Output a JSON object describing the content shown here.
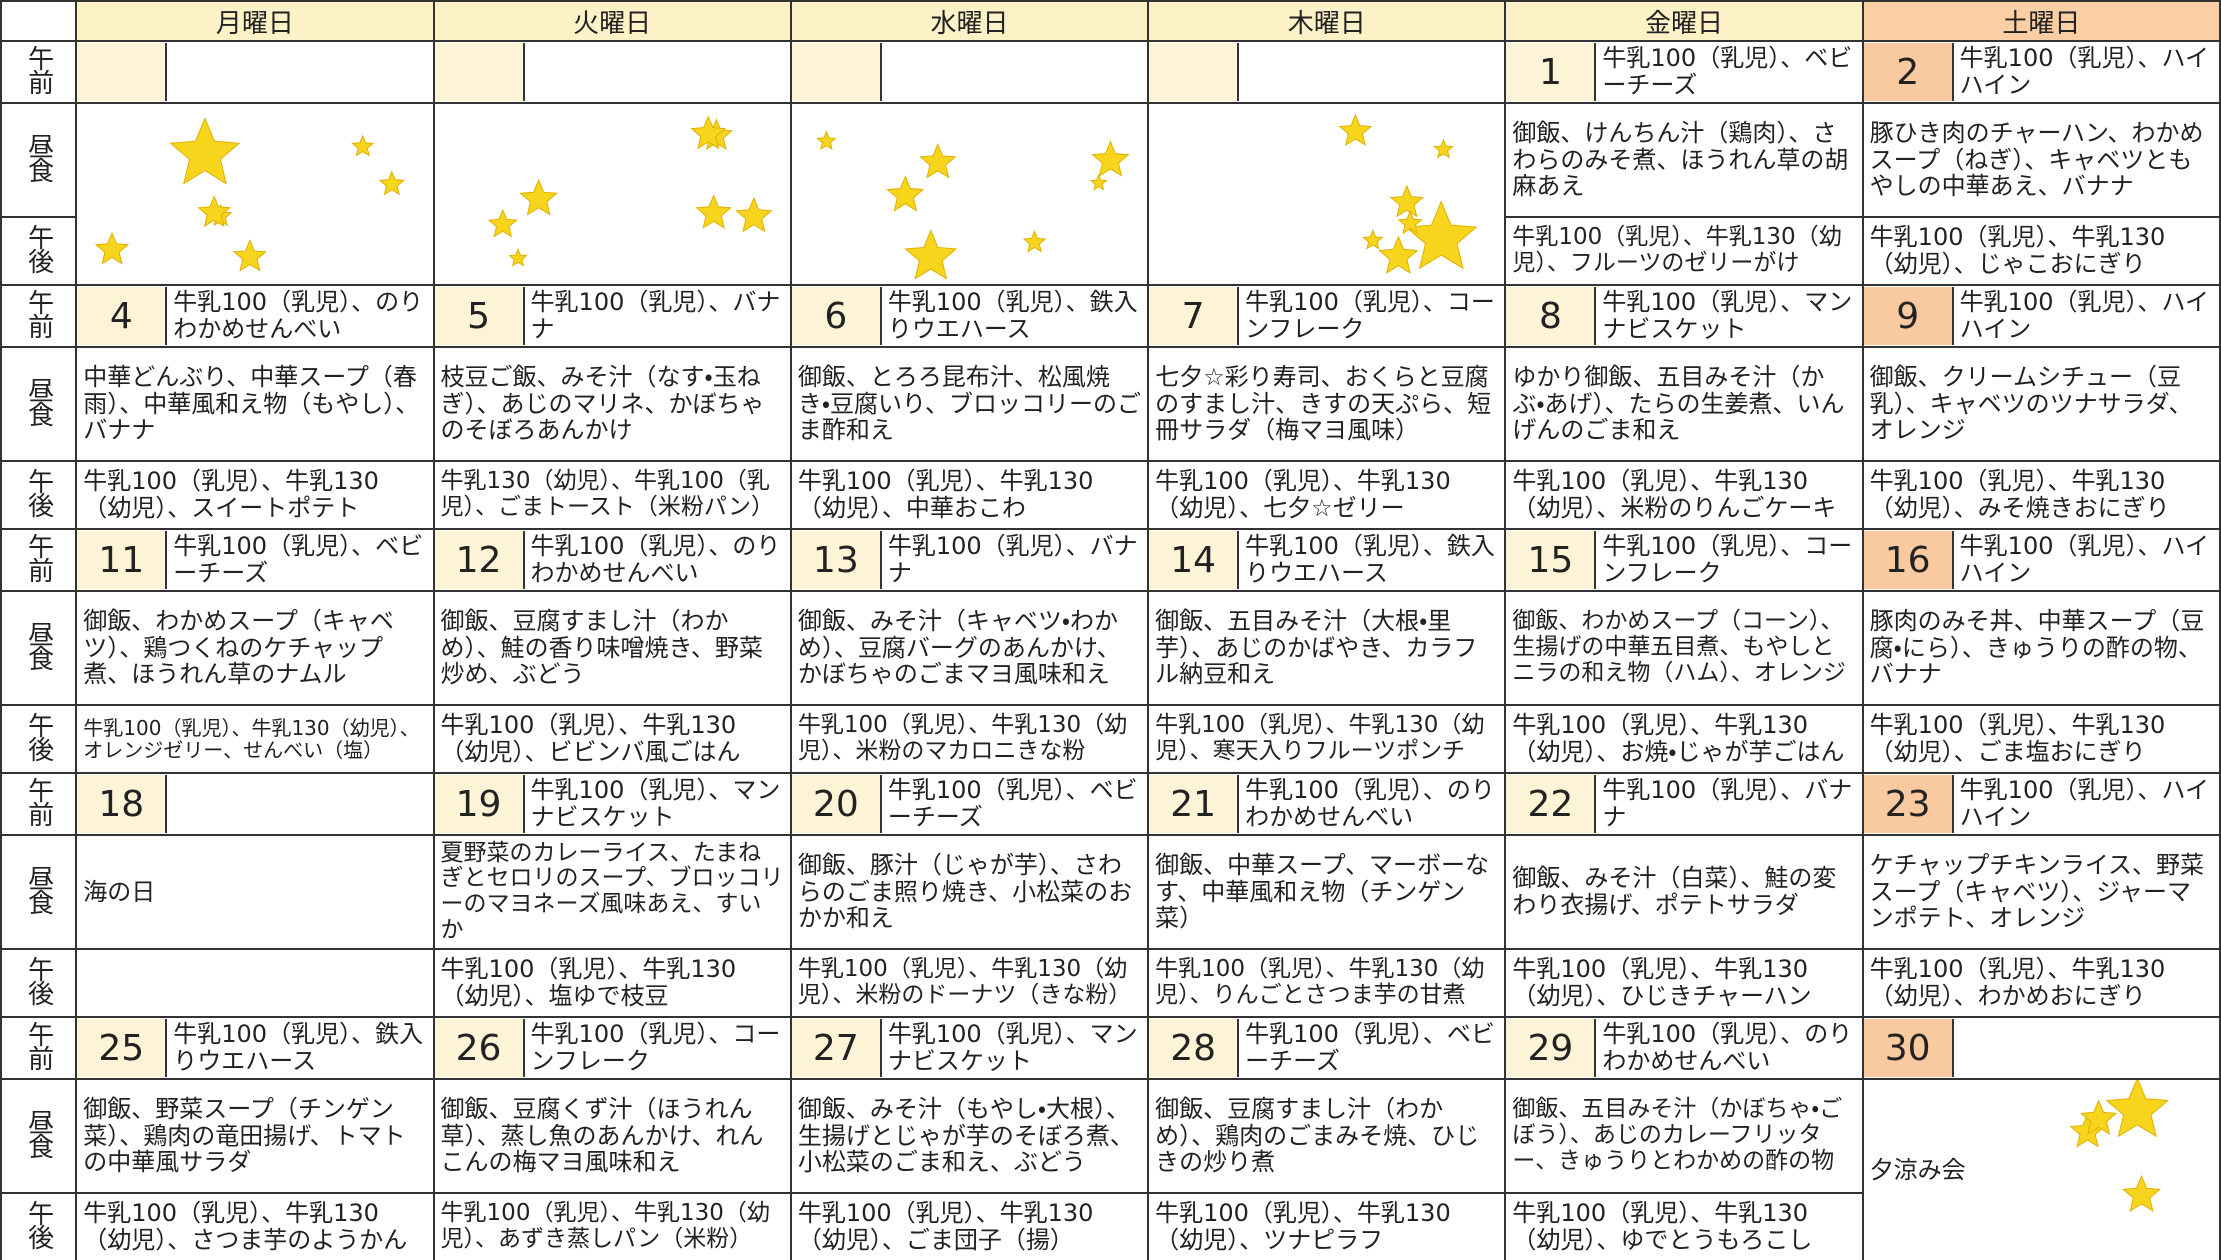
{
  "days": [
    "月曜日",
    "火曜日",
    "水曜日",
    "木曜日",
    "金曜日",
    "土曜日"
  ],
  "row_labels": [
    "午前",
    "昼食",
    "午後"
  ],
  "weeks": [
    {
      "cells": [
        null,
        null,
        null,
        null,
        {
          "date": 1,
          "am": "牛乳100（乳児）、ベビーチーズ",
          "lunch": "御飯、けんちん汁（鶏肉）、さわらのみそ煮、ほうれん草の胡麻あえ",
          "pm": "牛乳100（乳児）、牛乳130（幼児）、フルーツのゼリーがけ"
        },
        {
          "date": 2,
          "am": "牛乳100（乳児）、ハイハイン",
          "lunch": "豚ひき肉のチャーハン、わかめスープ（ねぎ）、キャベツともやしの中華あえ、バナナ",
          "pm": "牛乳100（乳児）、牛乳130（幼児）、じゃこおにぎり"
        }
      ]
    },
    {
      "cells": [
        {
          "date": 4,
          "am": "牛乳100（乳児）、のりわかめせんべい",
          "lunch": "中華どんぶり、中華スープ（春雨）、中華風和え物（もやし）、バナナ",
          "pm": "牛乳100（乳児）、牛乳130（幼児）、スイートポテト"
        },
        {
          "date": 5,
          "am": "牛乳100（乳児）、バナナ",
          "lunch": "枝豆ご飯、みそ汁（なす・玉ねぎ）、あじのマリネ、かぼちゃのそぼろあんかけ",
          "pm": "牛乳130（幼児）、牛乳100（乳児）、ごまトースト（米粉パン）"
        },
        {
          "date": 6,
          "am": "牛乳100（乳児）、鉄入りウエハース",
          "lunch": "御飯、とろろ昆布汁、松風焼き・豆腐いり、ブロッコリーのごま酢和え",
          "pm": "牛乳100（乳児）、牛乳130（幼児）、中華おこわ"
        },
        {
          "date": 7,
          "am": "牛乳100（乳児）、コーンフレーク",
          "lunch": "七夕☆彩り寿司、おくらと豆腐のすまし汁、きすの天ぷら、短冊サラダ（梅マヨ風味）",
          "pm": "牛乳100（乳児）、牛乳130（幼児）、七夕☆ゼリー"
        },
        {
          "date": 8,
          "am": "牛乳100（乳児）、マンナビスケット",
          "lunch": "ゆかり御飯、五目みそ汁（かぶ・あげ）、たらの生姜煮、いんげんのごま和え",
          "pm": "牛乳100（乳児）、牛乳130（幼児）、米粉のりんごケーキ"
        },
        {
          "date": 9,
          "am": "牛乳100（乳児）、ハイハイン",
          "lunch": "御飯、クリームシチュー（豆乳）、キャベツのツナサラダ、オレンジ",
          "pm": "牛乳100（乳児）、牛乳130（幼児）、みそ焼きおにぎり"
        }
      ]
    },
    {
      "cells": [
        {
          "date": 11,
          "am": "牛乳100（乳児）、ベビーチーズ",
          "lunch": "御飯、わかめスープ（キャベツ）、鶏つくねのケチャップ煮、ほうれん草のナムル",
          "pm": "牛乳100（乳児）、牛乳130（幼児）、オレンジゼリー、せんべい（塩）"
        },
        {
          "date": 12,
          "am": "牛乳100（乳児）、のりわかめせんべい",
          "lunch": "御飯、豆腐すまし汁（わかめ）、鮭の香り味噌焼き、野菜炒め、ぶどう",
          "pm": "牛乳100（乳児）、牛乳130（幼児）、ビビンバ風ごはん"
        },
        {
          "date": 13,
          "am": "牛乳100（乳児）、バナナ",
          "lunch": "御飯、みそ汁（キャベツ・わかめ）、豆腐バーグのあんかけ、かぼちゃのごまマヨ風味和え",
          "pm": "牛乳100（乳児）、牛乳130（幼児）、米粉のマカロニきな粉"
        },
        {
          "date": 14,
          "am": "牛乳100（乳児）、鉄入りウエハース",
          "lunch": "御飯、五目みそ汁（大根・里芋）、あじのかばやき、カラフル納豆和え",
          "pm": "牛乳100（乳児）、牛乳130（幼児）、寒天入りフルーツポンチ"
        },
        {
          "date": 15,
          "am": "牛乳100（乳児）、コーンフレーク",
          "lunch": "御飯、わかめスープ（コーン）、生揚げの中華五目煮、もやしとニラの和え物（ハム）、オレンジ",
          "pm": "牛乳100（乳児）、牛乳130（幼児）、お焼・じゃが芋ごはん"
        },
        {
          "date": 16,
          "am": "牛乳100（乳児）、ハイハイン",
          "lunch": "豚肉のみそ丼、中華スープ（豆腐・にら）、きゅうりの酢の物、バナナ",
          "pm": "牛乳100（乳児）、牛乳130（幼児）、ごま塩おにぎり"
        }
      ]
    },
    {
      "cells": [
        {
          "date": 18,
          "lunch": "海の日"
        },
        {
          "date": 19,
          "am": "牛乳100（乳児）、マンナビスケット",
          "lunch": "夏野菜のカレーライス、たまねぎとセロリのスープ、ブロッコリーのマヨネーズ風味あえ、すいか",
          "pm": "牛乳100（乳児）、牛乳130（幼児）、塩ゆで枝豆"
        },
        {
          "date": 20,
          "am": "牛乳100（乳児）、ベビーチーズ",
          "lunch": "御飯、豚汁（じゃが芋）、さわらのごま照り焼き、小松菜のおかか和え",
          "pm": "牛乳100（乳児）、牛乳130（幼児）、米粉のドーナツ（きな粉）"
        },
        {
          "date": 21,
          "am": "牛乳100（乳児）、のりわかめせんべい",
          "lunch": "御飯、中華スープ、マーボーなす、中華風和え物（チンゲン菜）",
          "pm": "牛乳100（乳児）、牛乳130（幼児）、りんごとさつま芋の甘煮"
        },
        {
          "date": 22,
          "am": "牛乳100（乳児）、バナナ",
          "lunch": "御飯、みそ汁（白菜）、鮭の変わり衣揚げ、ポテトサラダ",
          "pm": "牛乳100（乳児）、牛乳130（幼児）、ひじきチャーハン"
        },
        {
          "date": 23,
          "am": "牛乳100（乳児）、ハイハイン",
          "lunch": "ケチャップチキンライス、野菜スープ（キャベツ）、ジャーマンポテト、オレンジ",
          "pm": "牛乳100（乳児）、牛乳130（幼児）、わかめおにぎり"
        }
      ]
    },
    {
      "cells": [
        {
          "date": 25,
          "am": "牛乳100（乳児）、鉄入りウエハース",
          "lunch": "御飯、野菜スープ（チンゲン菜）、鶏肉の竜田揚げ、トマトの中華風サラダ",
          "pm": "牛乳100（乳児）、牛乳130（幼児）、さつま芋のようかん"
        },
        {
          "date": 26,
          "am": "牛乳100（乳児）、コーンフレーク",
          "lunch": "御飯、豆腐くず汁（ほうれん草）、蒸し魚のあんかけ、れんこんの梅マヨ風味和え",
          "pm": "牛乳100（乳児）、牛乳130（幼児）、あずき蒸しパン（米粉）"
        },
        {
          "date": 27,
          "am": "牛乳100（乳児）、マンナビスケット",
          "lunch": "御飯、みそ汁（もやし・大根）、生揚げとじゃが芋のそぼろ煮、小松菜のごま和え、ぶどう",
          "pm": "牛乳100（乳児）、牛乳130（幼児）、ごま団子（揚）"
        },
        {
          "date": 28,
          "am": "牛乳100（乳児）、ベビーチーズ",
          "lunch": "御飯、豆腐すまし汁（わかめ）、鶏肉のごまみそ焼、ひじきの炒り煮",
          "pm": "牛乳100（乳児）、牛乳130（幼児）、ツナピラフ"
        },
        {
          "date": 29,
          "am": "牛乳100（乳児）、のりわかめせんべい",
          "lunch": "御飯、五目みそ汁（かぼちゃ・ごぼう）、あじのカレーフリッター、きゅうりとわかめの酢の物",
          "pm": "牛乳100（乳児）、牛乳130（幼児）、ゆでとうもろこし"
        },
        {
          "date": 30,
          "lunch": "夕涼み会"
        }
      ]
    }
  ]
}
